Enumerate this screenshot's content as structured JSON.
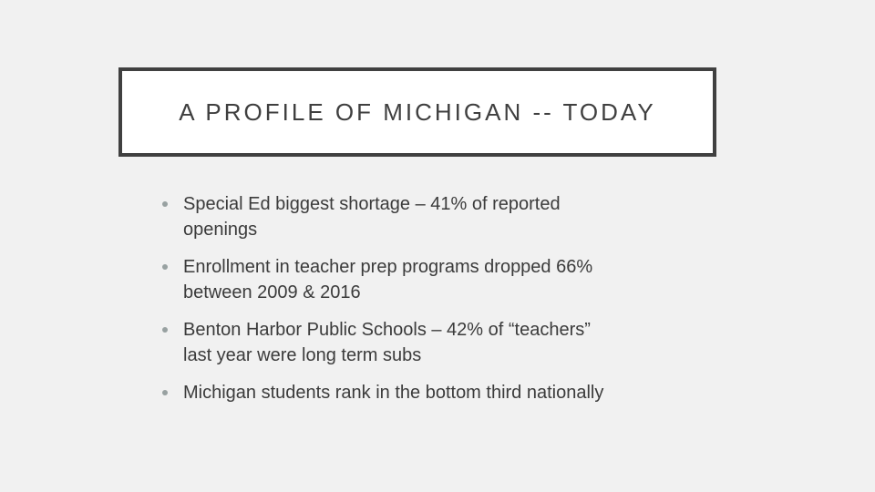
{
  "slide": {
    "title": "A PROFILE OF MICHIGAN -- TODAY",
    "bullets": [
      {
        "text": "Special Ed biggest shortage – 41% of reported\nopenings"
      },
      {
        "text": "Enrollment in teacher prep programs dropped 66%\nbetween 2009 & 2016"
      },
      {
        "text": "Benton Harbor Public Schools – 42% of “teachers”\nlast year were long term subs"
      },
      {
        "text": "Michigan students rank in the bottom third nationally"
      }
    ],
    "colors": {
      "background": "#f1f1f1",
      "title_box_fill": "#ffffff",
      "title_box_border": "#404040",
      "title_text": "#3f3f3f",
      "body_text": "#3b3b3b",
      "bullet_dot": "#98a1a1"
    }
  }
}
